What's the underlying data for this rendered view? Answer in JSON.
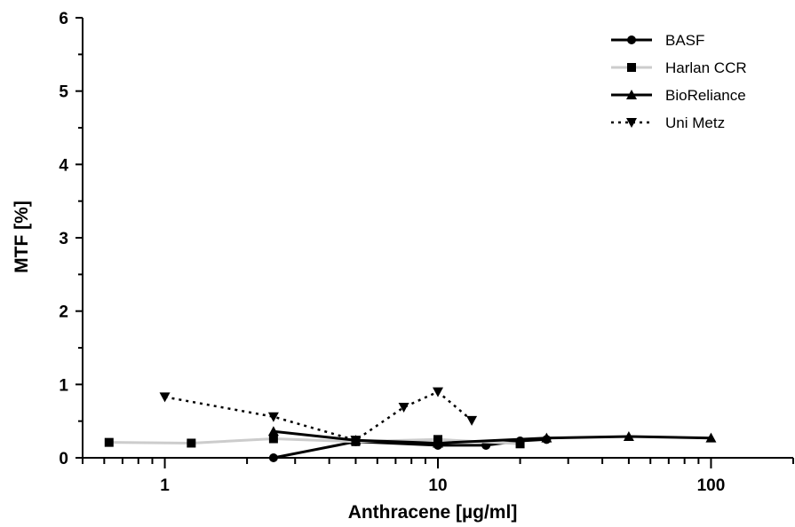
{
  "chart_data": {
    "type": "line",
    "xlabel": "Anthracene [µg/ml]",
    "ylabel": "MTF [%]",
    "xscale": "log",
    "xlim": [
      0.5,
      200
    ],
    "ylim": [
      0,
      6
    ],
    "x_ticks": [
      "1",
      "10",
      "100"
    ],
    "y_ticks": [
      "0",
      "1",
      "2",
      "3",
      "4",
      "5",
      "6"
    ],
    "legend_position": "top-right",
    "series": [
      {
        "name": "BASF",
        "marker": "circle",
        "line_style": "solid",
        "color": "#000000",
        "x": [
          2.5,
          5,
          10,
          15,
          20,
          25
        ],
        "y": [
          0.0,
          0.22,
          0.17,
          0.17,
          0.23,
          0.25
        ]
      },
      {
        "name": "Harlan CCR",
        "marker": "square",
        "line_style": "solid",
        "color": "#cccccc",
        "marker_color": "#000000",
        "x": [
          0.625,
          1.25,
          2.5,
          5,
          10,
          20
        ],
        "y": [
          0.21,
          0.2,
          0.26,
          0.22,
          0.25,
          0.19
        ]
      },
      {
        "name": "BioReliance",
        "marker": "triangle-up",
        "line_style": "solid",
        "color": "#000000",
        "x": [
          2.5,
          5,
          10,
          25,
          50,
          100
        ],
        "y": [
          0.36,
          0.24,
          0.2,
          0.27,
          0.29,
          0.27
        ]
      },
      {
        "name": "Uni Metz",
        "marker": "triangle-down",
        "line_style": "dotted",
        "color": "#000000",
        "x": [
          1,
          2.5,
          5,
          7.5,
          10,
          13.3
        ],
        "y": [
          0.83,
          0.56,
          0.24,
          0.69,
          0.9,
          0.51
        ]
      }
    ]
  }
}
